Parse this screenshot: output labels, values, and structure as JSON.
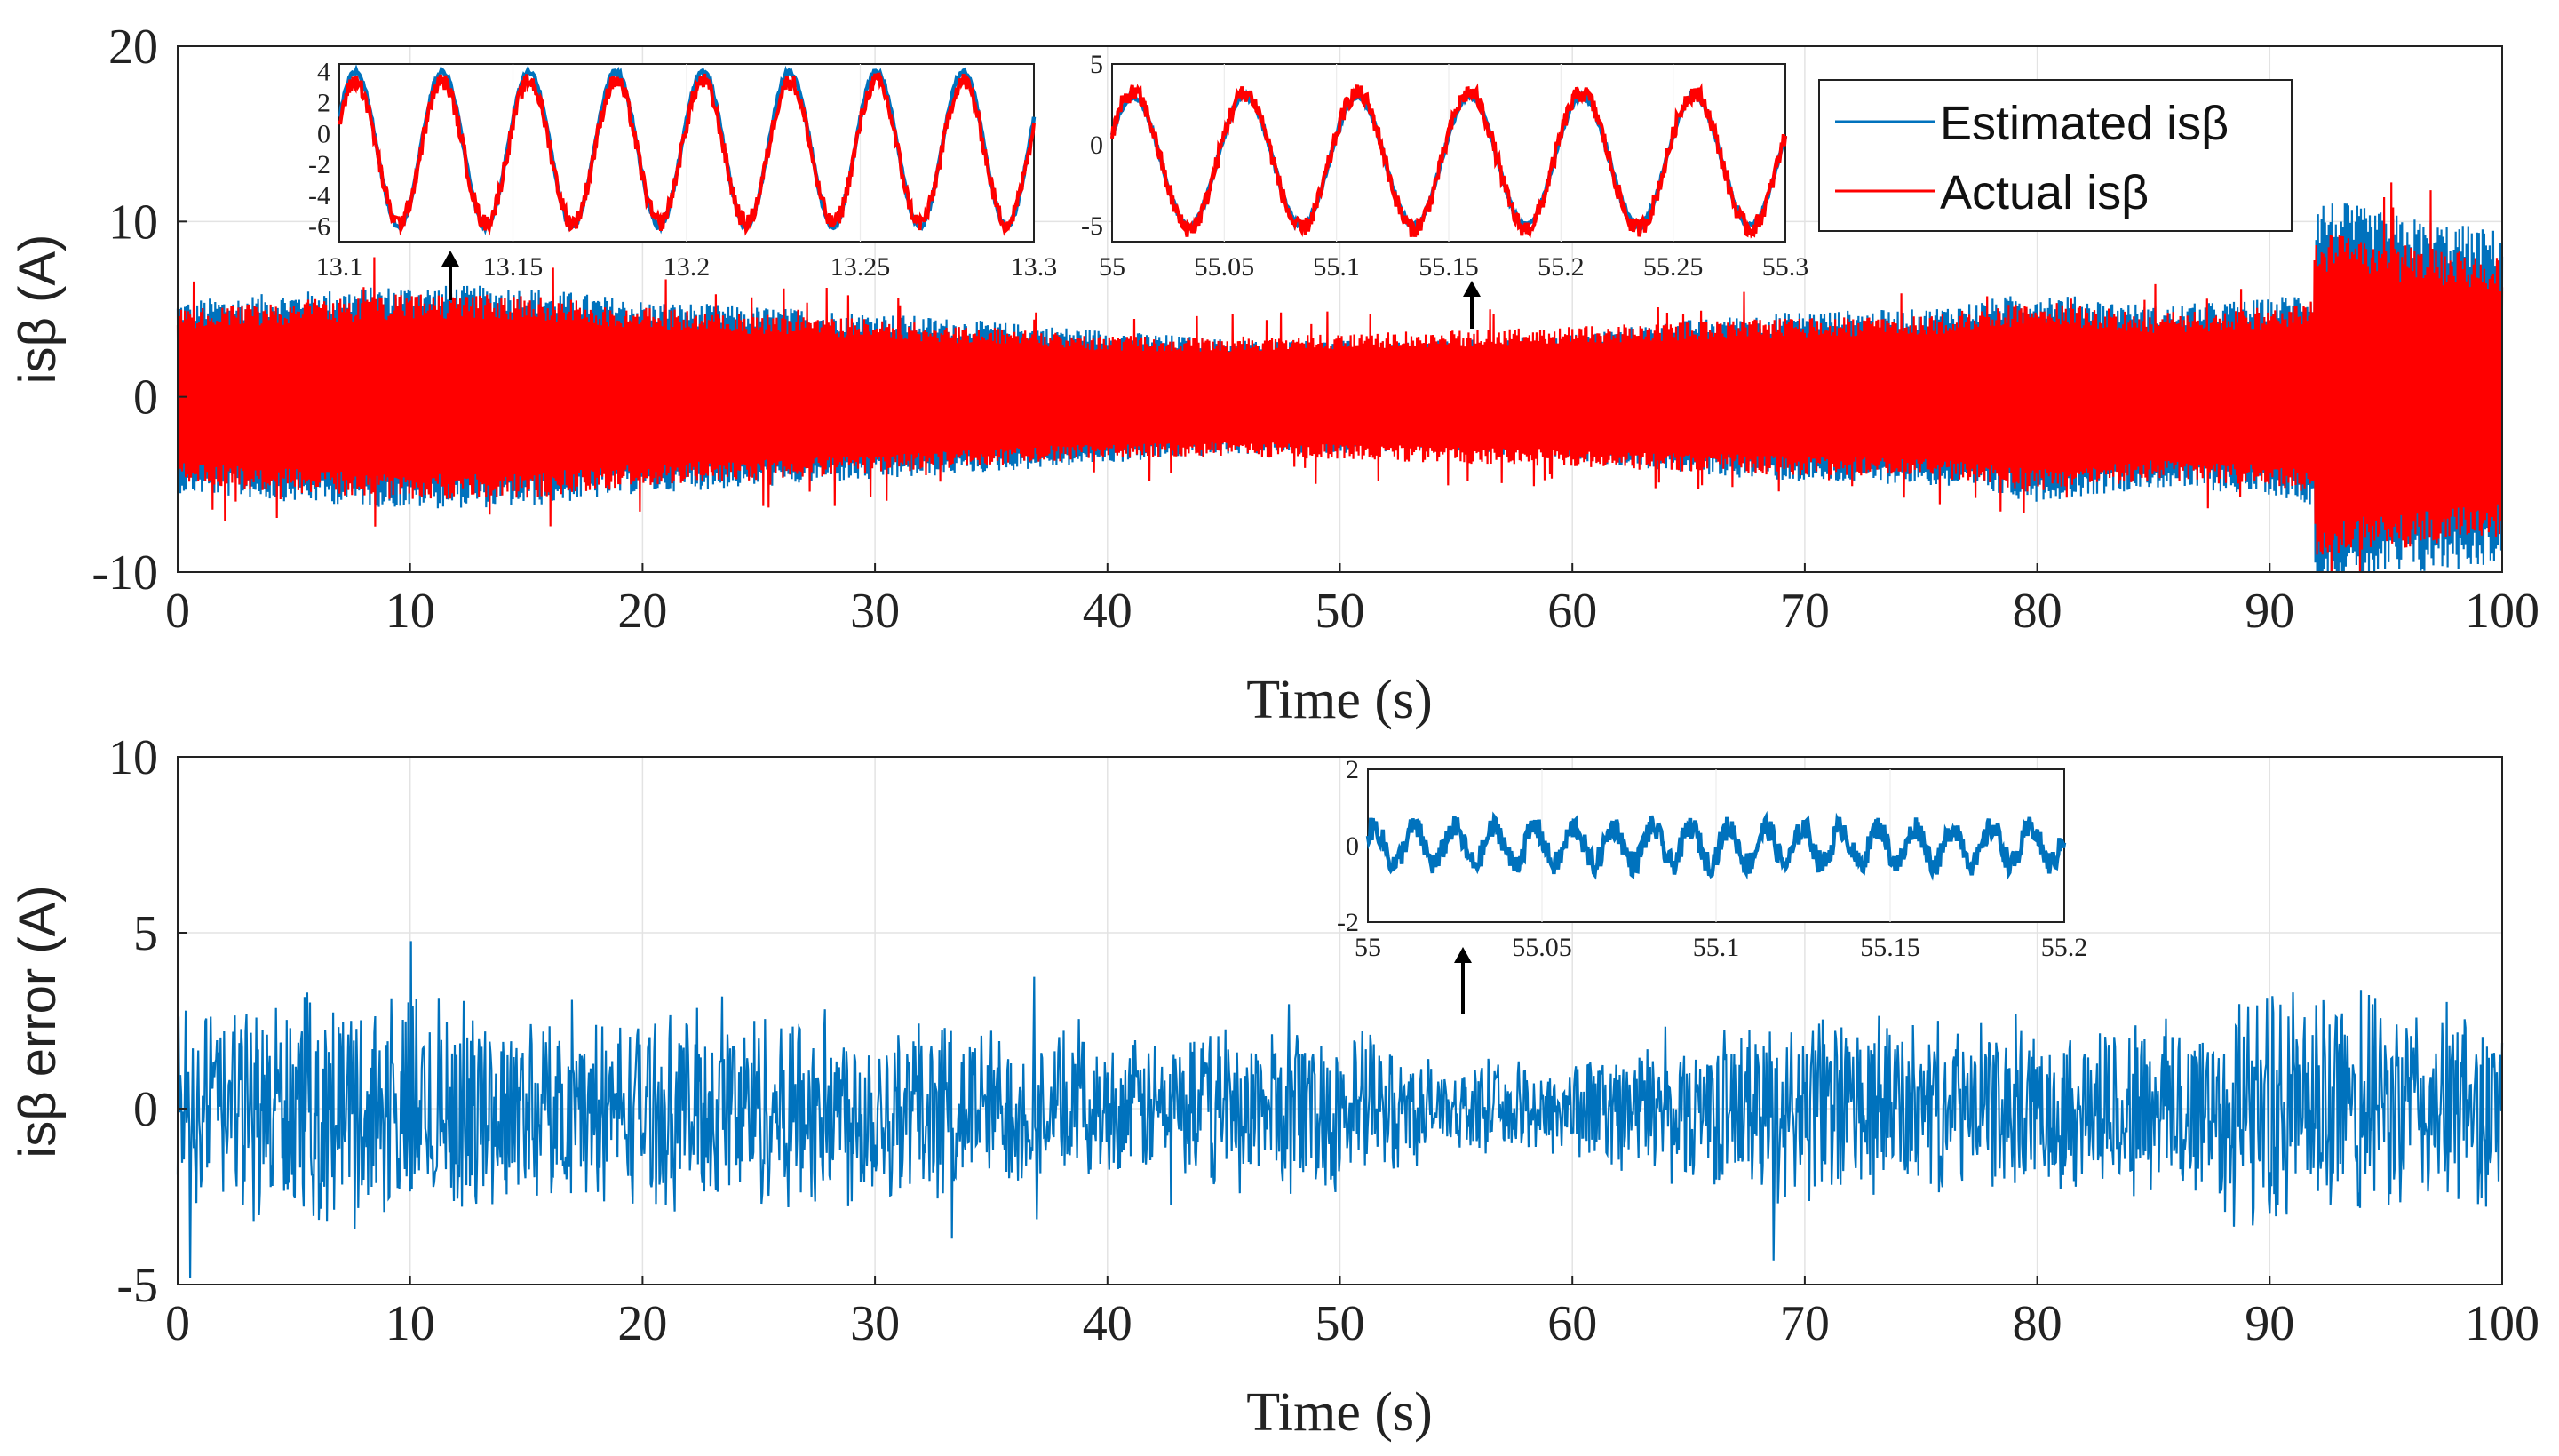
{
  "colors": {
    "estimated": "#0072BD",
    "actual": "#FF0000",
    "error": "#0072BD"
  },
  "chart_data": [
    {
      "id": "top",
      "type": "line",
      "xlabel": "Time (s)",
      "ylabel": "isβ (A)",
      "xlim": [
        0,
        100
      ],
      "ylim": [
        -10,
        20
      ],
      "xticks": [
        0,
        10,
        20,
        30,
        40,
        50,
        60,
        70,
        80,
        90,
        100
      ],
      "yticks": [
        -10,
        0,
        10,
        20
      ],
      "grid": true,
      "legend": {
        "position": "top-right",
        "entries": [
          "Estimated isβ",
          "Actual isβ"
        ]
      },
      "series": [
        {
          "name": "Estimated isβ",
          "color": "#0072BD",
          "style": "dense sinusoid, amplitude (A) vs time",
          "envelope_t": [
            0,
            5,
            10,
            15,
            20,
            30,
            40,
            45,
            50,
            55,
            60,
            65,
            70,
            75,
            80,
            85,
            90,
            91.9,
            92,
            95,
            100
          ],
          "envelope_amp": [
            5.5,
            6.0,
            6.4,
            6.3,
            5.5,
            4.8,
            3.8,
            3.3,
            3.2,
            3.2,
            3.6,
            4.4,
            4.9,
            5.0,
            6.0,
            5.2,
            5.6,
            6.2,
            11.5,
            10.5,
            9.5
          ]
        },
        {
          "name": "Actual isβ",
          "color": "#FF0000",
          "style": "dense sinusoid with spikes, amplitude (A) vs time",
          "envelope_t": [
            0,
            5,
            10,
            15,
            20,
            30,
            40,
            45,
            50,
            55,
            60,
            65,
            70,
            75,
            80,
            85,
            90,
            91.9,
            92,
            95,
            100
          ],
          "envelope_amp": [
            5.0,
            5.5,
            5.9,
            5.8,
            5.1,
            4.4,
            3.5,
            3.4,
            3.6,
            3.8,
            4.0,
            4.3,
            4.5,
            4.6,
            5.5,
            4.8,
            5.1,
            5.6,
            9.5,
            8.8,
            8.0
          ]
        }
      ],
      "insets": [
        {
          "id": "inset1",
          "xlim": [
            13.1,
            13.3
          ],
          "ylim": [
            -7,
            4.5
          ],
          "xticks": [
            13.1,
            13.15,
            13.2,
            13.25,
            13.3
          ],
          "yticks": [
            4,
            2,
            0,
            -2,
            -4,
            -6
          ],
          "series": [
            {
              "name": "Estimated isβ",
              "color": "#0072BD",
              "amplitude": 5.0,
              "offset": -1.0,
              "frequency_hz": 40
            },
            {
              "name": "Actual isβ",
              "color": "#FF0000",
              "amplitude": 4.6,
              "offset": -1.2,
              "frequency_hz": 40
            }
          ],
          "arrow_at_time": 11.7
        },
        {
          "id": "inset2",
          "xlim": [
            55,
            55.3
          ],
          "ylim": [
            -6,
            5
          ],
          "xticks": [
            55,
            55.05,
            55.1,
            55.15,
            55.2,
            55.25,
            55.3
          ],
          "yticks": [
            5,
            0,
            -5
          ],
          "series": [
            {
              "name": "Estimated isβ",
              "color": "#0072BD",
              "amplitude": 4.0,
              "offset": -1.0,
              "frequency_hz": 20
            },
            {
              "name": "Actual isβ",
              "color": "#FF0000",
              "amplitude": 4.2,
              "offset": -1.0,
              "frequency_hz": 20
            }
          ],
          "arrow_at_time": 55.5
        }
      ]
    },
    {
      "id": "bottom",
      "type": "line",
      "xlabel": "Time (s)",
      "ylabel": "isβ error (A)",
      "xlim": [
        0,
        100
      ],
      "ylim": [
        -5,
        10
      ],
      "xticks": [
        0,
        10,
        20,
        30,
        40,
        50,
        60,
        70,
        80,
        90,
        100
      ],
      "yticks": [
        -5,
        0,
        5,
        10
      ],
      "grid": true,
      "series": [
        {
          "name": "isβ error",
          "color": "#0072BD",
          "style": "dense noise, amplitude (A) vs time",
          "envelope_t": [
            0,
            5,
            10,
            15,
            20,
            25,
            30,
            35,
            40,
            45,
            50,
            55,
            60,
            65,
            70,
            75,
            80,
            85,
            90,
            95,
            100
          ],
          "envelope_amp": [
            3.2,
            3.5,
            3.6,
            2.8,
            2.9,
            3.2,
            3.0,
            2.6,
            2.0,
            2.5,
            2.7,
            1.2,
            1.6,
            2.2,
            3.0,
            2.6,
            2.4,
            3.0,
            3.8,
            3.4,
            3.0
          ]
        }
      ],
      "insets": [
        {
          "id": "inset3",
          "xlim": [
            55,
            55.2
          ],
          "ylim": [
            -2,
            2
          ],
          "xticks": [
            55,
            55.05,
            55.1,
            55.15,
            55.2
          ],
          "yticks": [
            2,
            0,
            -2
          ],
          "series": [
            {
              "name": "isβ error",
              "color": "#0072BD",
              "amplitude": 0.8
            }
          ],
          "arrow_at_time": 55
        }
      ]
    }
  ]
}
